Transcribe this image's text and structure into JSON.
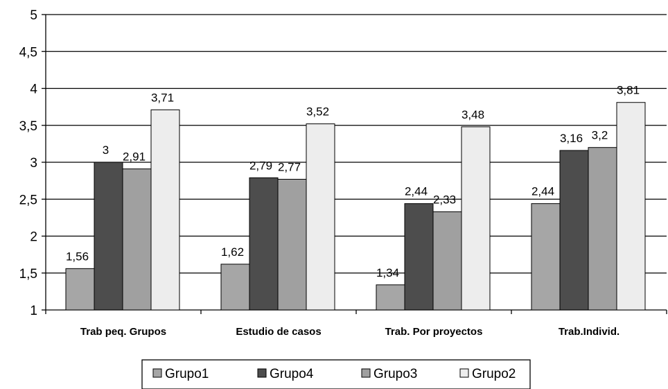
{
  "chart_data": {
    "type": "bar",
    "categories": [
      "Trab peq. Grupos",
      "Estudio de casos",
      "Trab. Por proyectos",
      "Trab.Individ."
    ],
    "series": [
      {
        "name": "Grupo1",
        "color": "#a6a6a6",
        "values": [
          1.56,
          1.62,
          1.34,
          2.44
        ],
        "labels": [
          "1,56",
          "1,62",
          "1,34",
          "2,44"
        ]
      },
      {
        "name": "Grupo4",
        "color": "#4d4d4d",
        "values": [
          3,
          2.79,
          2.44,
          3.16
        ],
        "labels": [
          "3",
          "2,79",
          "2,44",
          "3,16"
        ]
      },
      {
        "name": "Grupo3",
        "color": "#a0a0a0",
        "values": [
          2.91,
          2.77,
          2.33,
          3.2
        ],
        "labels": [
          "2,91",
          "2,77",
          "2,33",
          "3,2"
        ]
      },
      {
        "name": "Grupo2",
        "color": "#ededed",
        "values": [
          3.71,
          3.52,
          3.48,
          3.81
        ],
        "labels": [
          "3,71",
          "3,52",
          "3,48",
          "3,81"
        ]
      }
    ],
    "ylim": [
      1,
      5
    ],
    "yticks": [
      "1",
      "1,5",
      "2",
      "2,5",
      "3",
      "3,5",
      "4",
      "4,5",
      "5"
    ],
    "grid": true,
    "legend": "bottom"
  }
}
